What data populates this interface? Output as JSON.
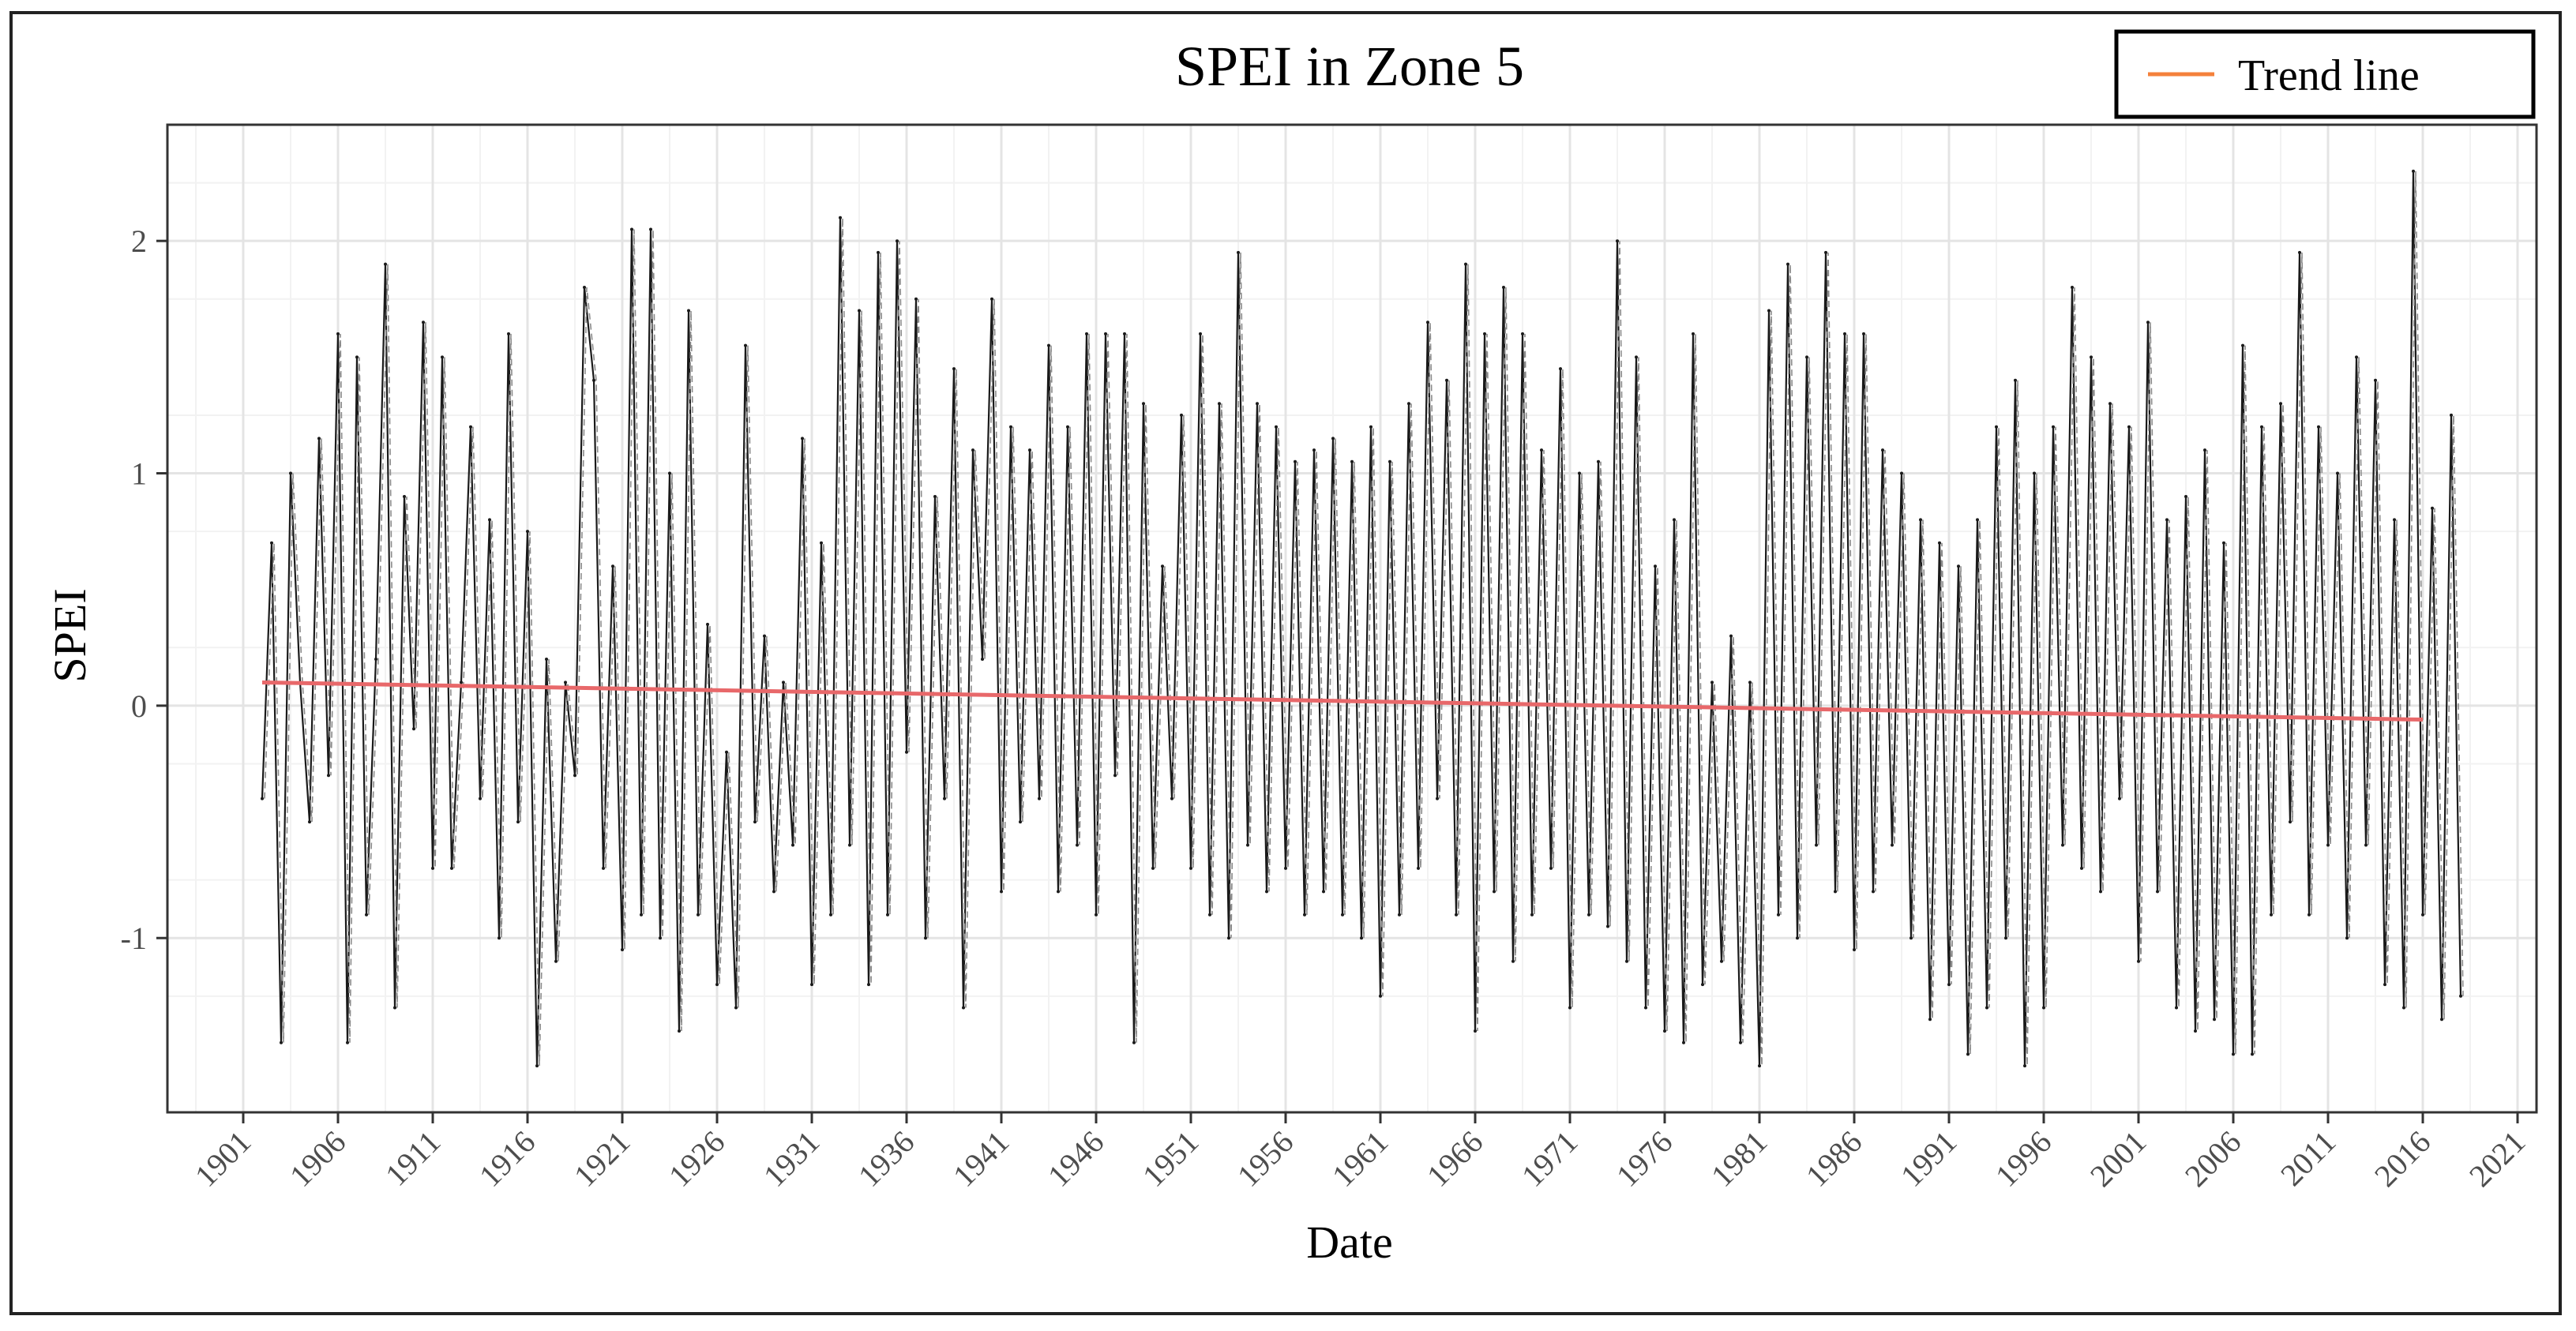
{
  "chart_data": {
    "type": "line",
    "title": "SPEI in Zone 5",
    "xlabel": "Date",
    "ylabel": "SPEI",
    "xlim": [
      1897,
      2022
    ],
    "ylim": [
      -1.75,
      2.5
    ],
    "x_ticks": [
      "1901",
      "1906",
      "1911",
      "1916",
      "1921",
      "1926",
      "1931",
      "1936",
      "1941",
      "1946",
      "1951",
      "1956",
      "1961",
      "1966",
      "1971",
      "1976",
      "1981",
      "1986",
      "1991",
      "1996",
      "2001",
      "2006",
      "2011",
      "2016",
      "2021"
    ],
    "y_ticks": [
      -1,
      0,
      1,
      2
    ],
    "y_tick_labels": [
      "-1",
      "0",
      "1",
      "2"
    ],
    "legend": {
      "position": "top-right",
      "entries": [
        {
          "name": "Trend line",
          "color": "#f4813b"
        }
      ]
    },
    "series": [
      {
        "name": "SPEI",
        "color": "#1a1a1a",
        "x_start": 1902.0,
        "x_step": 0.5,
        "values": [
          -0.4,
          0.7,
          -1.45,
          1.0,
          0.1,
          -0.5,
          1.15,
          -0.3,
          1.6,
          -1.45,
          1.5,
          -0.9,
          0.2,
          1.9,
          -1.3,
          0.9,
          -0.1,
          1.65,
          -0.7,
          1.5,
          -0.7,
          0.1,
          1.2,
          -0.4,
          0.8,
          -1.0,
          1.6,
          -0.5,
          0.75,
          -1.55,
          0.2,
          -1.1,
          0.1,
          -0.3,
          1.8,
          1.4,
          -0.7,
          0.6,
          -1.05,
          2.05,
          -0.9,
          2.05,
          -1.0,
          1.0,
          -1.4,
          1.7,
          -0.9,
          0.35,
          -1.2,
          -0.2,
          -1.3,
          1.55,
          -0.5,
          0.3,
          -0.8,
          0.1,
          -0.6,
          1.15,
          -1.2,
          0.7,
          -0.9,
          2.1,
          -0.6,
          1.7,
          -1.2,
          1.95,
          -0.9,
          2.0,
          -0.2,
          1.75,
          -1.0,
          0.9,
          -0.4,
          1.45,
          -1.3,
          1.1,
          0.2,
          1.75,
          -0.8,
          1.2,
          -0.5,
          1.1,
          -0.4,
          1.55,
          -0.8,
          1.2,
          -0.6,
          1.6,
          -0.9,
          1.6,
          -0.3,
          1.6,
          -1.45,
          1.3,
          -0.7,
          0.6,
          -0.4,
          1.25,
          -0.7,
          1.6,
          -0.9,
          1.3,
          -1.0,
          1.95,
          -0.6,
          1.3,
          -0.8,
          1.2,
          -0.7,
          1.05,
          -0.9,
          1.1,
          -0.8,
          1.15,
          -0.9,
          1.05,
          -1.0,
          1.2,
          -1.25,
          1.05,
          -0.9,
          1.3,
          -0.7,
          1.65,
          -0.4,
          1.4,
          -0.9,
          1.9,
          -1.4,
          1.6,
          -0.8,
          1.8,
          -1.1,
          1.6,
          -0.9,
          1.1,
          -0.7,
          1.45,
          -1.3,
          1.0,
          -0.9,
          1.05,
          -0.95,
          2.0,
          -1.1,
          1.5,
          -1.3,
          0.6,
          -1.4,
          0.8,
          -1.45,
          1.6,
          -1.2,
          0.1,
          -1.1,
          0.3,
          -1.45,
          0.1,
          -1.55,
          1.7,
          -0.9,
          1.9,
          -1.0,
          1.5,
          -0.6,
          1.95,
          -0.8,
          1.6,
          -1.05,
          1.6,
          -0.8,
          1.1,
          -0.6,
          1.0,
          -1.0,
          0.8,
          -1.35,
          0.7,
          -1.2,
          0.6,
          -1.5,
          0.8,
          -1.3,
          1.2,
          -1.0,
          1.4,
          -1.55,
          1.0,
          -1.3,
          1.2,
          -0.6,
          1.8,
          -0.7,
          1.5,
          -0.8,
          1.3,
          -0.4,
          1.2,
          -1.1,
          1.65,
          -0.8,
          0.8,
          -1.3,
          0.9,
          -1.4,
          1.1,
          -1.35,
          0.7,
          -1.5,
          1.55,
          -1.5,
          1.2,
          -0.9,
          1.3,
          -0.5,
          1.95,
          -0.9,
          1.2,
          -0.6,
          1.0,
          -1.0,
          1.5,
          -0.6,
          1.4,
          -1.2,
          0.8,
          -1.3,
          2.3,
          -0.9,
          0.85,
          -1.35,
          1.25,
          -1.25
        ]
      },
      {
        "name": "Trend line",
        "color": "#e8686a",
        "x": [
          1902.0,
          2016.0
        ],
        "values": [
          0.1,
          -0.06
        ]
      }
    ]
  }
}
